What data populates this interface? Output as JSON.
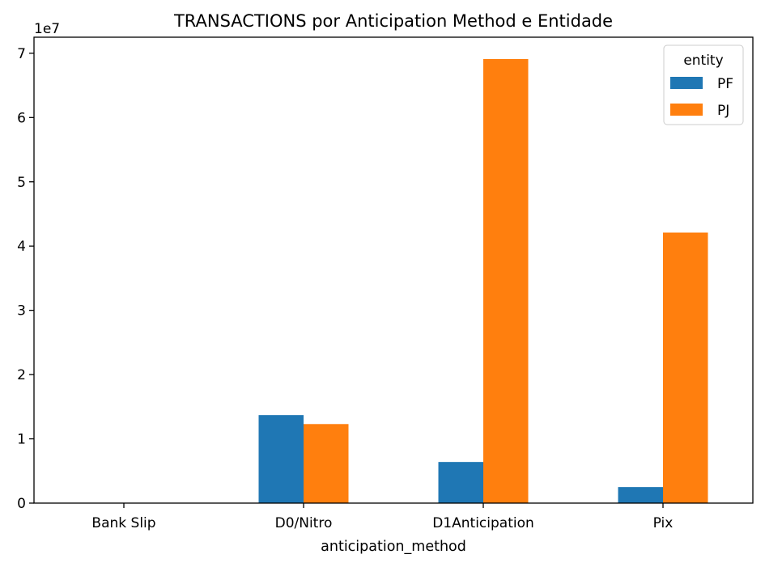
{
  "chart_data": {
    "type": "bar",
    "title": "TRANSACTIONS por Anticipation Method e Entidade",
    "xlabel": "anticipation_method",
    "ylabel": "",
    "y_offset_label": "1e7",
    "ylim": [
      0,
      72500000
    ],
    "y_ticks": [
      0,
      10000000,
      20000000,
      30000000,
      40000000,
      50000000,
      60000000,
      70000000
    ],
    "y_tick_labels": [
      "0",
      "1",
      "2",
      "3",
      "4",
      "5",
      "6",
      "7"
    ],
    "categories": [
      "Bank Slip",
      "D0/Nitro",
      "D1Anticipation",
      "Pix"
    ],
    "legend": {
      "title": "entity",
      "placement": "top-right"
    },
    "grid": false,
    "series": [
      {
        "name": "PF",
        "color": "#1f77b4",
        "values": [
          0,
          13700000,
          6400000,
          2500000
        ]
      },
      {
        "name": "PJ",
        "color": "#ff7f0e",
        "values": [
          0,
          12300000,
          69100000,
          42100000
        ]
      }
    ]
  }
}
